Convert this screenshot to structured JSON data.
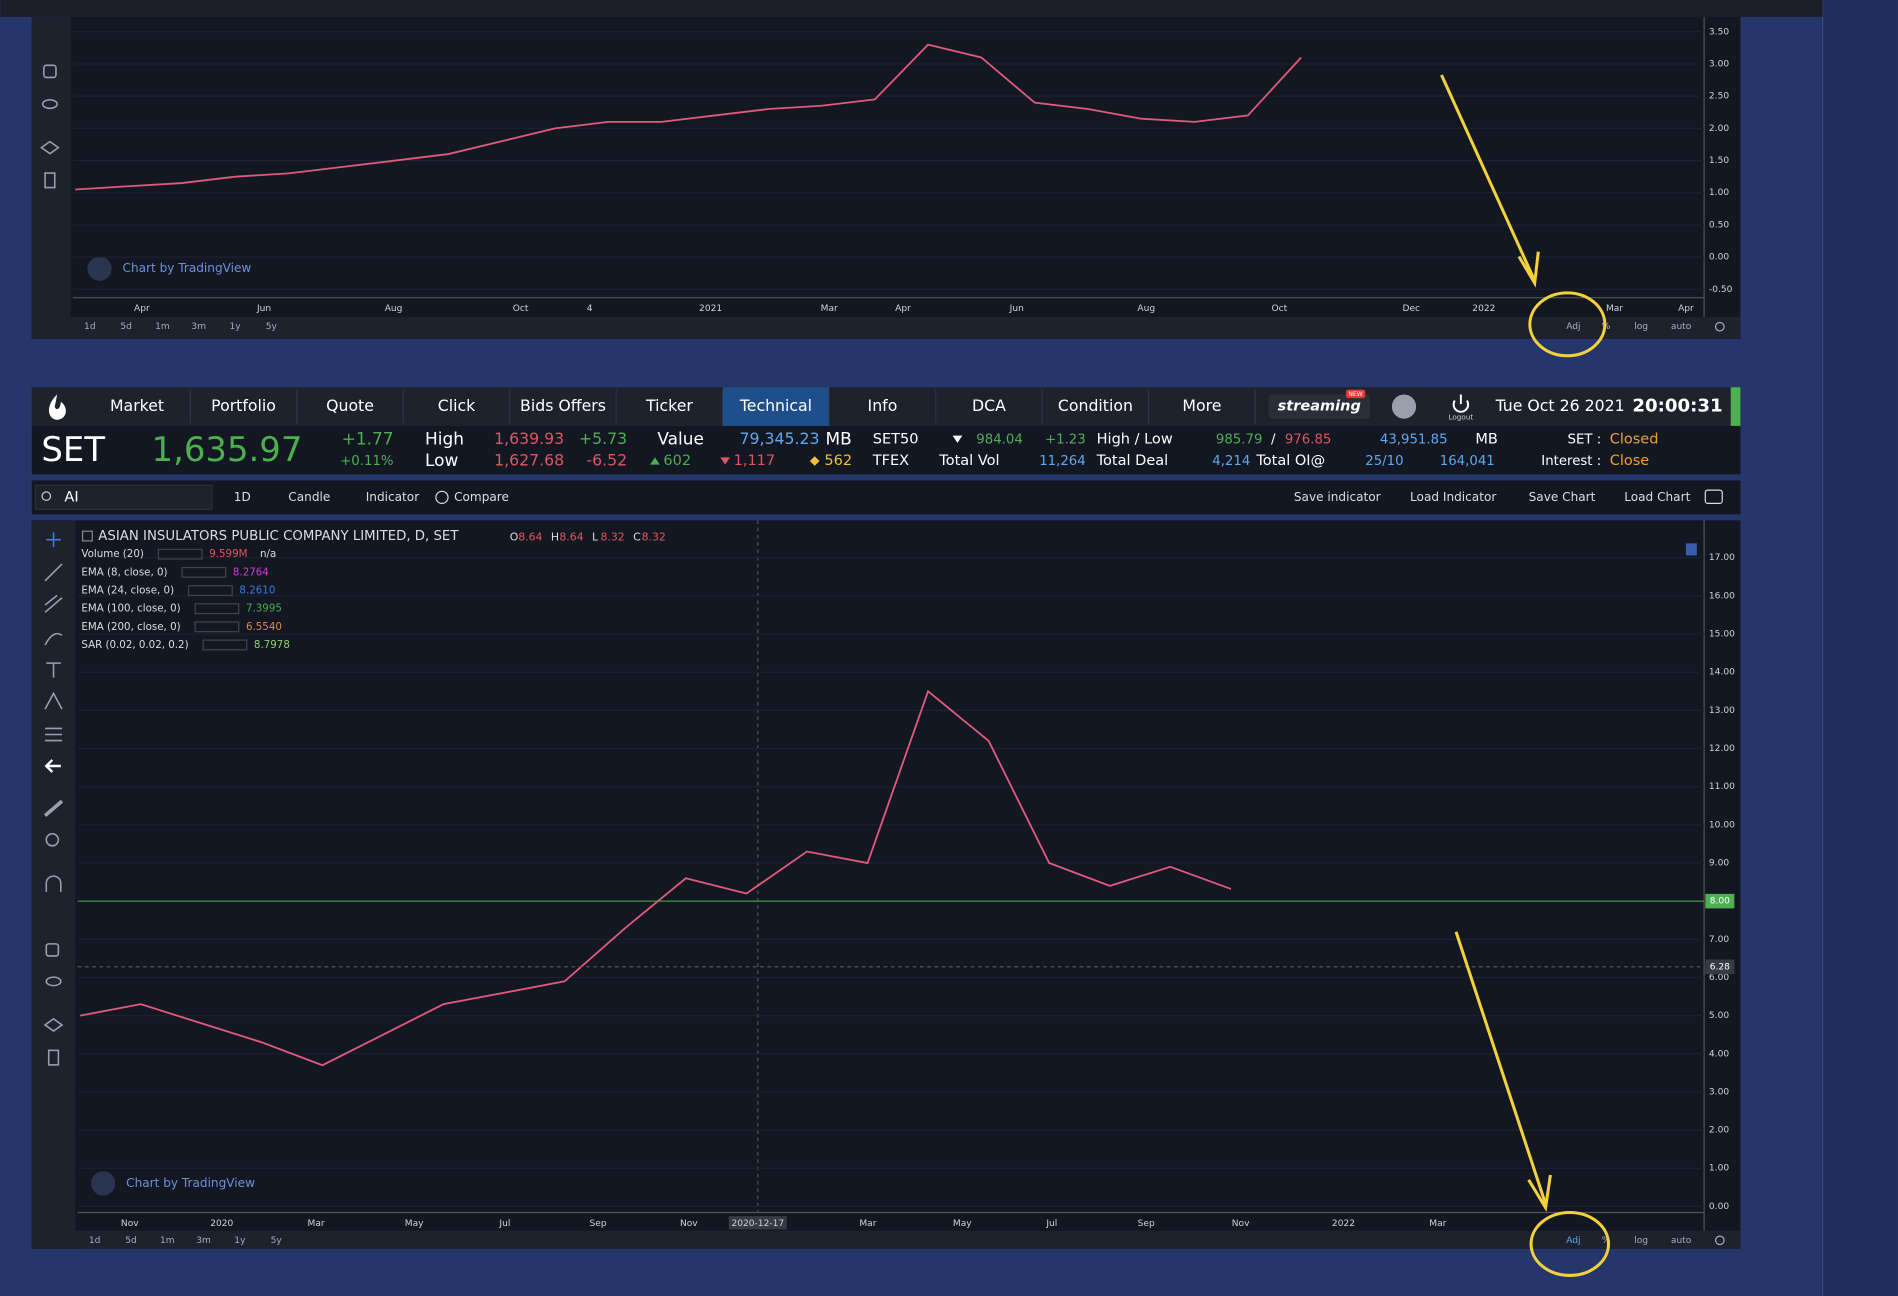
{
  "top_chart": {
    "yticks": [
      {
        "value": 3.5,
        "label": "3.50"
      },
      {
        "value": 3.0,
        "label": "3.00"
      },
      {
        "value": 2.5,
        "label": "2.50"
      },
      {
        "value": 2.0,
        "label": "2.00"
      },
      {
        "value": 1.5,
        "label": "1.50"
      },
      {
        "value": 1.0,
        "label": "1.00"
      },
      {
        "value": 0.5,
        "label": "0.50"
      },
      {
        "value": 0.0,
        "label": "0.00"
      },
      {
        "value": -0.5,
        "label": "-0.50"
      }
    ],
    "ylim": [
      -0.63,
      3.73
    ],
    "x_labels": [
      "Apr",
      "Jun",
      "Aug",
      "Oct",
      "4",
      "2021",
      "Mar",
      "Apr",
      "Jun",
      "Aug",
      "Oct",
      "Dec",
      "2022",
      "Mar",
      "Apr"
    ],
    "close": [
      1.05,
      1.1,
      1.15,
      1.25,
      1.3,
      1.4,
      1.5,
      1.6,
      1.8,
      2.0,
      2.1,
      2.1,
      2.2,
      2.3,
      2.35,
      2.45,
      3.3,
      3.1,
      2.4,
      2.3,
      2.15,
      2.1,
      2.2,
      3.1
    ],
    "line_color": "#e05a7a",
    "watermark": "Chart by TradingView",
    "ranges": [
      "1d",
      "5d",
      "1m",
      "3m",
      "1y",
      "5y"
    ],
    "options": [
      "Adj",
      "%",
      "log",
      "auto"
    ]
  },
  "nav": {
    "items": [
      "Market",
      "Portfolio",
      "Quote",
      "Click",
      "Bids Offers",
      "Ticker",
      "Technical",
      "Info",
      "DCA",
      "Condition",
      "More"
    ],
    "active": "Technical",
    "logo": "streaming",
    "badge": "NEW",
    "logout": "Logout",
    "date": "Tue Oct 26 2021",
    "time": "20:00:31"
  },
  "quote": {
    "index": "SET",
    "last": "1,635.97",
    "change": "+1.77",
    "change_pct": "+0.11%",
    "high_label": "High",
    "high": "1,639.93",
    "high_chg": "+5.73",
    "low_label": "Low",
    "low": "1,627.68",
    "low_chg": "-6.52",
    "value_label": "Value",
    "value": "79,345.23",
    "value_unit": "MB",
    "up": "602",
    "down": "1,117",
    "unchanged": "562",
    "set50": "SET50",
    "set50_last": "984.04",
    "set50_chg": "+1.23",
    "hl_label": "High / Low",
    "set50_high": "985.79",
    "slash": "/",
    "set50_low": "976.85",
    "set50_value": "43,951.85",
    "set50_unit": "MB",
    "tfex": "TFEX",
    "total_vol_label": "Total Vol",
    "total_vol": "11,264",
    "total_deal_label": "Total Deal",
    "total_deal": "4,214",
    "total_oi_label": "Total OI@",
    "total_oi_date": "25/10",
    "total_oi": "164,041",
    "set_status_label": "SET :",
    "set_status": "Closed",
    "interest_label": "Interest :",
    "interest_status": "Close"
  },
  "toolbar": {
    "search": "AI",
    "interval": "1D",
    "candle": "Candle",
    "indicator": "Indicator",
    "compare": "Compare",
    "save_indicator": "Save indicator",
    "load_indicator": "Load Indicator",
    "save_chart": "Save Chart",
    "load_chart": "Load Chart"
  },
  "main_chart": {
    "title": "ASIAN INSULATORS PUBLIC COMPANY LIMITED, D, SET",
    "ohlc": [
      {
        "key": "O",
        "value": "8.64"
      },
      {
        "key": "H",
        "value": "8.64"
      },
      {
        "key": "L",
        "value": "8.32"
      },
      {
        "key": "C",
        "value": "8.32"
      }
    ],
    "indicators": [
      {
        "name": "Volume (20)",
        "value": "9.599M",
        "extra": "n/a",
        "color": "#e0555f"
      },
      {
        "name": "EMA (8, close, 0)",
        "value": "8.2764",
        "color": "#d63ad6"
      },
      {
        "name": "EMA (24, close, 0)",
        "value": "8.2610",
        "color": "#3b7ddd"
      },
      {
        "name": "EMA (100, close, 0)",
        "value": "7.3995",
        "color": "#4caf50"
      },
      {
        "name": "EMA (200, close, 0)",
        "value": "6.5540",
        "color": "#e08a3c"
      },
      {
        "name": "SAR (0.02, 0.02, 0.2)",
        "value": "8.7978",
        "color": "#8bd36b"
      }
    ],
    "yticks": [
      {
        "value": 17,
        "label": "17.00"
      },
      {
        "value": 16,
        "label": "16.00"
      },
      {
        "value": 15,
        "label": "15.00"
      },
      {
        "value": 14,
        "label": "14.00"
      },
      {
        "value": 13,
        "label": "13.00"
      },
      {
        "value": 12,
        "label": "12.00"
      },
      {
        "value": 11,
        "label": "11.00"
      },
      {
        "value": 10,
        "label": "10.00"
      },
      {
        "value": 9,
        "label": "9.00"
      },
      {
        "value": 8,
        "label": "8.00"
      },
      {
        "value": 7,
        "label": "7.00"
      },
      {
        "value": 6,
        "label": "6.00"
      },
      {
        "value": 5,
        "label": "5.00"
      },
      {
        "value": 4,
        "label": "4.00"
      },
      {
        "value": 3,
        "label": "3.00"
      },
      {
        "value": 2,
        "label": "2.00"
      },
      {
        "value": 1,
        "label": "1.00"
      },
      {
        "value": 0,
        "label": "0.00"
      }
    ],
    "ylim": [
      -0.16,
      17.98
    ],
    "price_line": {
      "value": 8.0,
      "label": "8.00"
    },
    "cursor_price": {
      "value": 6.28,
      "label": "6.28"
    },
    "x_labels": [
      "Nov",
      "2020",
      "Mar",
      "May",
      "Jul",
      "Sep",
      "Nov",
      "2020-12-17",
      "Mar",
      "May",
      "Jul",
      "Sep",
      "Nov",
      "2022",
      "Mar"
    ],
    "close": [
      5.0,
      5.3,
      4.8,
      4.3,
      3.7,
      4.5,
      5.3,
      5.6,
      5.9,
      7.3,
      8.6,
      8.2,
      9.3,
      9.0,
      13.5,
      12.2,
      9.0,
      8.4,
      8.9,
      8.32
    ],
    "line_color": "#e05a7a",
    "watermark": "Chart by TradingView",
    "ranges": [
      "1d",
      "5d",
      "1m",
      "3m",
      "1y",
      "5y"
    ],
    "options": [
      "Adj",
      "%",
      "log",
      "auto"
    ]
  }
}
